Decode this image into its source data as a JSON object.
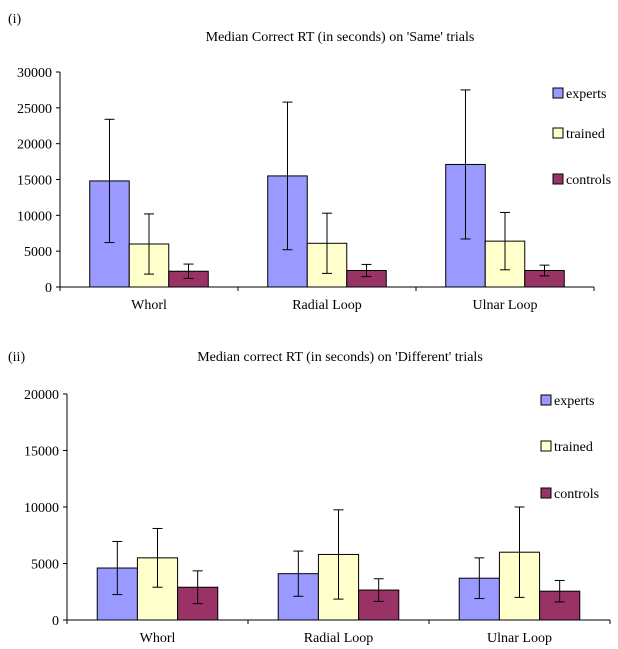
{
  "chart_data": [
    {
      "type": "bar",
      "panel_label": "(i)",
      "title": "Median Correct RT (in seconds) on 'Same' trials",
      "categories": [
        "Whorl",
        "Radial Loop",
        "Ulnar Loop"
      ],
      "ylim": [
        0,
        30000
      ],
      "yticks": [
        "0",
        "5000",
        "10000",
        "15000",
        "20000",
        "25000",
        "30000"
      ],
      "grid": false,
      "legend_position": "right",
      "series": [
        {
          "name": "experts",
          "color": "#9999ff",
          "values": [
            14800,
            15500,
            17100
          ],
          "errors": [
            8600,
            10300,
            10400
          ]
        },
        {
          "name": "trained",
          "color": "#ffffcc",
          "values": [
            6000,
            6100,
            6400
          ],
          "errors": [
            4200,
            4200,
            4000
          ]
        },
        {
          "name": "controls",
          "color": "#993366",
          "values": [
            2200,
            2300,
            2300
          ],
          "errors": [
            1000,
            850,
            750
          ]
        }
      ]
    },
    {
      "type": "bar",
      "panel_label": "(ii)",
      "title": "Median correct RT (in seconds) on 'Different' trials",
      "categories": [
        "Whorl",
        "Radial Loop",
        "Ulnar Loop"
      ],
      "ylim": [
        0,
        20000
      ],
      "yticks": [
        "0",
        "5000",
        "10000",
        "15000",
        "20000"
      ],
      "grid": false,
      "legend_position": "right",
      "series": [
        {
          "name": "experts",
          "color": "#9999ff",
          "values": [
            4600,
            4100,
            3700
          ],
          "errors": [
            2350,
            2000,
            1800
          ]
        },
        {
          "name": "trained",
          "color": "#ffffcc",
          "values": [
            5500,
            5800,
            6000
          ],
          "errors": [
            2600,
            3950,
            4000
          ]
        },
        {
          "name": "controls",
          "color": "#993366",
          "values": [
            2900,
            2650,
            2550
          ],
          "errors": [
            1450,
            1000,
            950
          ]
        }
      ]
    }
  ]
}
